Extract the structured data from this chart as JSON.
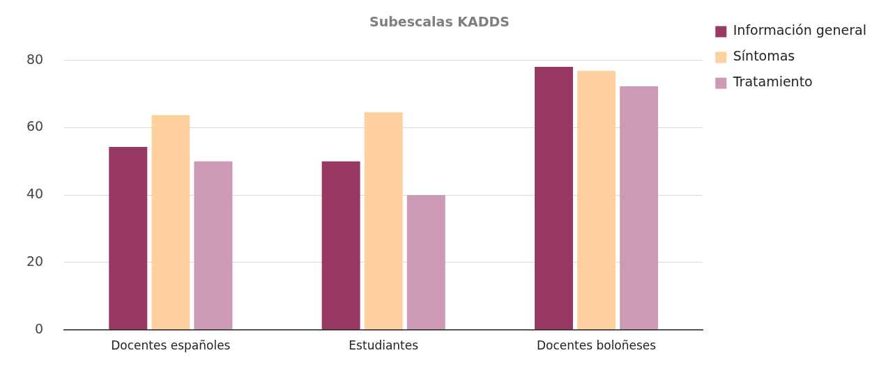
{
  "chart_data": {
    "type": "bar",
    "title": "Subescalas KADDS",
    "categories": [
      "Docentes españoles",
      "Estudiantes",
      "Docentes boloñeses"
    ],
    "series": [
      {
        "name": "Información general",
        "color": "#983865",
        "values": [
          54.3,
          50,
          78.1
        ]
      },
      {
        "name": "Síntomas",
        "color": "#fdd09e",
        "values": [
          63.8,
          64.6,
          76.9
        ]
      },
      {
        "name": "Tratamiento",
        "color": "#cc9ab4",
        "values": [
          50,
          40,
          72.3
        ]
      }
    ],
    "ylim": [
      0,
      80
    ],
    "yticks": [
      0,
      20,
      40,
      60,
      80
    ],
    "grid": "y",
    "legend": "right"
  }
}
